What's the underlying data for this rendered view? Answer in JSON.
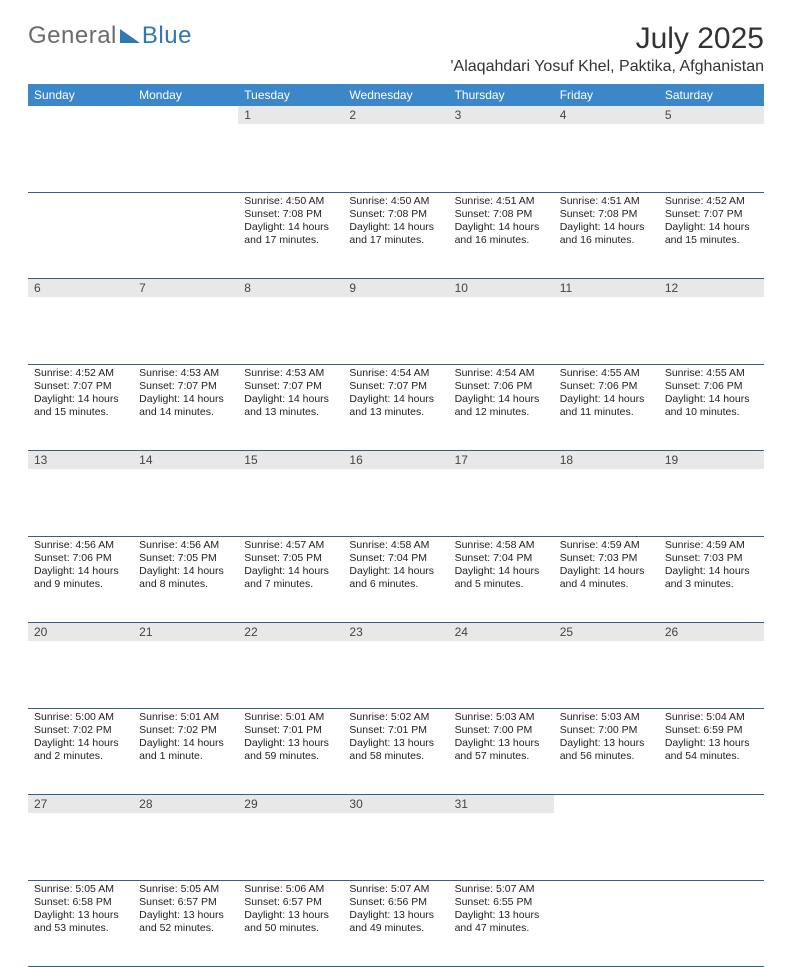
{
  "brand": {
    "part1": "General",
    "part2": "Blue"
  },
  "title": "July 2025",
  "location": "'Alaqahdari Yosuf Khel, Paktika, Afghanistan",
  "colors": {
    "header_bg": "#3c87c7",
    "header_text": "#ffffff",
    "daynum_bg": "#e8e8e8",
    "row_border": "#3a5e82",
    "brand_gray": "#6b6b6b",
    "brand_blue": "#2f77b6"
  },
  "weekdays": [
    "Sunday",
    "Monday",
    "Tuesday",
    "Wednesday",
    "Thursday",
    "Friday",
    "Saturday"
  ],
  "weeks": [
    [
      null,
      null,
      {
        "n": "1",
        "sr": "4:50 AM",
        "ss": "7:08 PM",
        "dl": "14 hours and 17 minutes."
      },
      {
        "n": "2",
        "sr": "4:50 AM",
        "ss": "7:08 PM",
        "dl": "14 hours and 17 minutes."
      },
      {
        "n": "3",
        "sr": "4:51 AM",
        "ss": "7:08 PM",
        "dl": "14 hours and 16 minutes."
      },
      {
        "n": "4",
        "sr": "4:51 AM",
        "ss": "7:08 PM",
        "dl": "14 hours and 16 minutes."
      },
      {
        "n": "5",
        "sr": "4:52 AM",
        "ss": "7:07 PM",
        "dl": "14 hours and 15 minutes."
      }
    ],
    [
      {
        "n": "6",
        "sr": "4:52 AM",
        "ss": "7:07 PM",
        "dl": "14 hours and 15 minutes."
      },
      {
        "n": "7",
        "sr": "4:53 AM",
        "ss": "7:07 PM",
        "dl": "14 hours and 14 minutes."
      },
      {
        "n": "8",
        "sr": "4:53 AM",
        "ss": "7:07 PM",
        "dl": "14 hours and 13 minutes."
      },
      {
        "n": "9",
        "sr": "4:54 AM",
        "ss": "7:07 PM",
        "dl": "14 hours and 13 minutes."
      },
      {
        "n": "10",
        "sr": "4:54 AM",
        "ss": "7:06 PM",
        "dl": "14 hours and 12 minutes."
      },
      {
        "n": "11",
        "sr": "4:55 AM",
        "ss": "7:06 PM",
        "dl": "14 hours and 11 minutes."
      },
      {
        "n": "12",
        "sr": "4:55 AM",
        "ss": "7:06 PM",
        "dl": "14 hours and 10 minutes."
      }
    ],
    [
      {
        "n": "13",
        "sr": "4:56 AM",
        "ss": "7:06 PM",
        "dl": "14 hours and 9 minutes."
      },
      {
        "n": "14",
        "sr": "4:56 AM",
        "ss": "7:05 PM",
        "dl": "14 hours and 8 minutes."
      },
      {
        "n": "15",
        "sr": "4:57 AM",
        "ss": "7:05 PM",
        "dl": "14 hours and 7 minutes."
      },
      {
        "n": "16",
        "sr": "4:58 AM",
        "ss": "7:04 PM",
        "dl": "14 hours and 6 minutes."
      },
      {
        "n": "17",
        "sr": "4:58 AM",
        "ss": "7:04 PM",
        "dl": "14 hours and 5 minutes."
      },
      {
        "n": "18",
        "sr": "4:59 AM",
        "ss": "7:03 PM",
        "dl": "14 hours and 4 minutes."
      },
      {
        "n": "19",
        "sr": "4:59 AM",
        "ss": "7:03 PM",
        "dl": "14 hours and 3 minutes."
      }
    ],
    [
      {
        "n": "20",
        "sr": "5:00 AM",
        "ss": "7:02 PM",
        "dl": "14 hours and 2 minutes."
      },
      {
        "n": "21",
        "sr": "5:01 AM",
        "ss": "7:02 PM",
        "dl": "14 hours and 1 minute."
      },
      {
        "n": "22",
        "sr": "5:01 AM",
        "ss": "7:01 PM",
        "dl": "13 hours and 59 minutes."
      },
      {
        "n": "23",
        "sr": "5:02 AM",
        "ss": "7:01 PM",
        "dl": "13 hours and 58 minutes."
      },
      {
        "n": "24",
        "sr": "5:03 AM",
        "ss": "7:00 PM",
        "dl": "13 hours and 57 minutes."
      },
      {
        "n": "25",
        "sr": "5:03 AM",
        "ss": "7:00 PM",
        "dl": "13 hours and 56 minutes."
      },
      {
        "n": "26",
        "sr": "5:04 AM",
        "ss": "6:59 PM",
        "dl": "13 hours and 54 minutes."
      }
    ],
    [
      {
        "n": "27",
        "sr": "5:05 AM",
        "ss": "6:58 PM",
        "dl": "13 hours and 53 minutes."
      },
      {
        "n": "28",
        "sr": "5:05 AM",
        "ss": "6:57 PM",
        "dl": "13 hours and 52 minutes."
      },
      {
        "n": "29",
        "sr": "5:06 AM",
        "ss": "6:57 PM",
        "dl": "13 hours and 50 minutes."
      },
      {
        "n": "30",
        "sr": "5:07 AM",
        "ss": "6:56 PM",
        "dl": "13 hours and 49 minutes."
      },
      {
        "n": "31",
        "sr": "5:07 AM",
        "ss": "6:55 PM",
        "dl": "13 hours and 47 minutes."
      },
      null,
      null
    ]
  ]
}
